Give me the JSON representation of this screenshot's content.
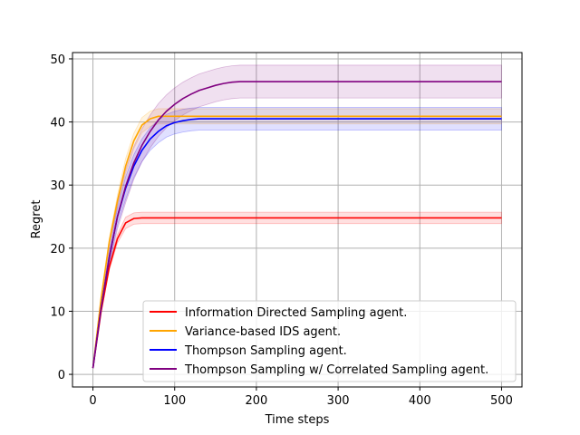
{
  "chart_data": {
    "type": "line",
    "title": "",
    "xlabel": "Time steps",
    "ylabel": "Regret",
    "xlim": [
      -25,
      525
    ],
    "ylim": [
      -2,
      51
    ],
    "xticks": [
      0,
      100,
      200,
      300,
      400,
      500
    ],
    "yticks": [
      0,
      10,
      20,
      30,
      40,
      50
    ],
    "grid": true,
    "legend_position": "lower-right",
    "series": [
      {
        "name": "Information Directed Sampling agent.",
        "color": "#ff0000",
        "x": [
          0,
          10,
          20,
          30,
          40,
          50,
          60,
          80,
          100,
          150,
          200,
          250,
          300,
          350,
          400,
          450,
          500
        ],
        "y": [
          1,
          10,
          17,
          21.5,
          24,
          24.7,
          24.8,
          24.8,
          24.8,
          24.8,
          24.8,
          24.8,
          24.8,
          24.8,
          24.8,
          24.8,
          24.8
        ],
        "band": 0.9
      },
      {
        "name": "Variance-based IDS agent.",
        "color": "#ffa500",
        "x": [
          0,
          10,
          20,
          30,
          40,
          50,
          60,
          70,
          80,
          90,
          100,
          150,
          200,
          250,
          300,
          350,
          400,
          450,
          500
        ],
        "y": [
          1,
          12,
          21,
          27.5,
          33,
          37,
          39.5,
          40.5,
          40.9,
          40.9,
          40.9,
          40.9,
          40.9,
          40.9,
          40.9,
          40.9,
          40.9,
          40.9,
          40.9
        ],
        "band": 1.2
      },
      {
        "name": "Thompson Sampling agent.",
        "color": "#0000ff",
        "x": [
          0,
          10,
          20,
          30,
          40,
          50,
          60,
          70,
          80,
          90,
          100,
          110,
          120,
          130,
          140,
          150,
          200,
          250,
          300,
          350,
          400,
          450,
          500
        ],
        "y": [
          1,
          10.5,
          18.5,
          25,
          29.5,
          33,
          35.5,
          37.3,
          38.5,
          39.4,
          39.9,
          40.2,
          40.4,
          40.5,
          40.5,
          40.5,
          40.5,
          40.5,
          40.5,
          40.5,
          40.5,
          40.5,
          40.5
        ],
        "band": 1.8
      },
      {
        "name": "Thompson Sampling w/ Correlated Sampling agent.",
        "color": "#800080",
        "x": [
          0,
          10,
          20,
          30,
          40,
          50,
          60,
          70,
          80,
          90,
          100,
          110,
          120,
          130,
          140,
          150,
          160,
          170,
          180,
          190,
          200,
          250,
          300,
          350,
          400,
          450,
          500
        ],
        "y": [
          1,
          10.5,
          18.5,
          25,
          29.8,
          33.5,
          36.3,
          38.5,
          40.3,
          41.7,
          42.8,
          43.7,
          44.4,
          45,
          45.4,
          45.8,
          46.1,
          46.3,
          46.4,
          46.4,
          46.4,
          46.4,
          46.4,
          46.4,
          46.4,
          46.4,
          46.4
        ],
        "band": 2.6
      }
    ]
  }
}
